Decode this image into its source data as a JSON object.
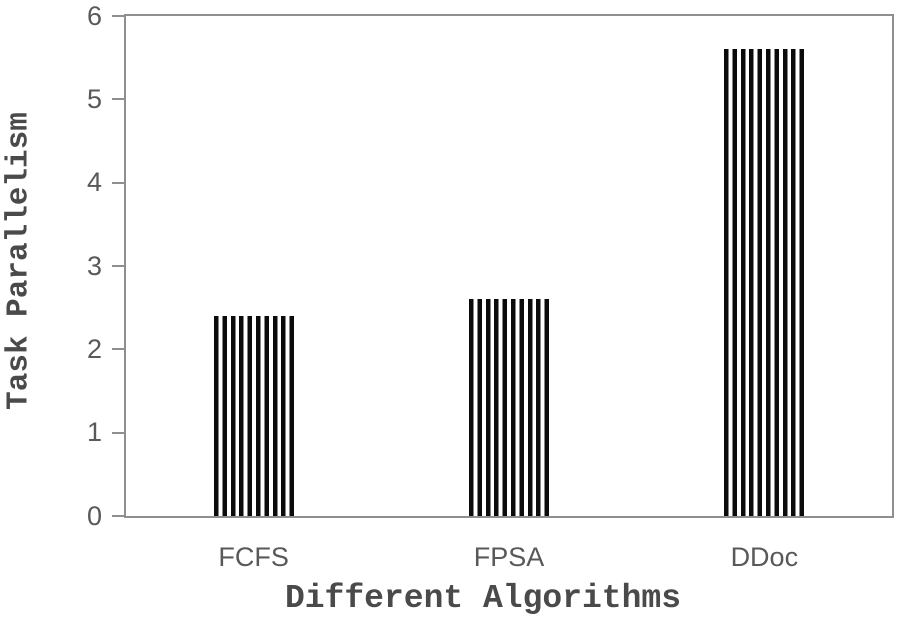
{
  "chart_data": {
    "type": "bar",
    "title": "",
    "categories": [
      "FCFS",
      "FPSA",
      "DDoc"
    ],
    "values": [
      2.4,
      2.6,
      5.6
    ],
    "xlabel": "Different Algorithms",
    "ylabel": "Task Parallelism",
    "ylim": [
      0,
      6
    ],
    "yticks": [
      0,
      1,
      2,
      3,
      4,
      5,
      6
    ],
    "grid": false,
    "legend": "none",
    "bar_style": "vertical-black-stripes-on-white",
    "colors": {
      "bar_stripe": "#0b0b0b",
      "bar_background": "#ffffff",
      "axis_frame": "#8f8f8f",
      "tick_label": "#595959",
      "axis_title": "#4a4a4a",
      "background": "#ffffff"
    }
  }
}
